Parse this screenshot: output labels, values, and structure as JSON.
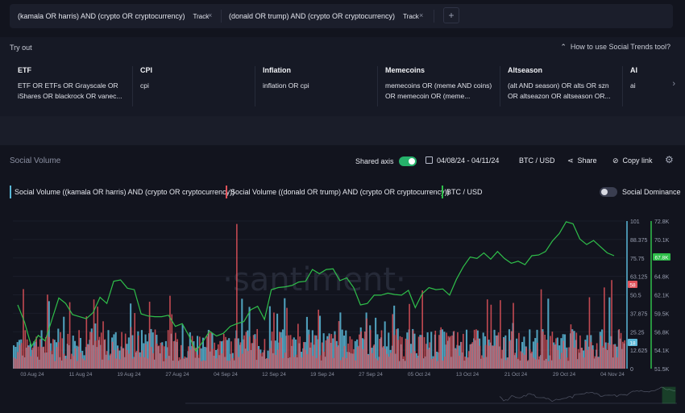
{
  "queries": [
    {
      "text": "(kamala OR harris) AND (crypto OR cryptocurrency)",
      "track": "Track",
      "close": "×"
    },
    {
      "text": "(donald OR trump) AND (crypto OR cryptocurrency)",
      "track": "Track",
      "close": "×"
    }
  ],
  "add_label": "+",
  "tryout": {
    "label": "Try out",
    "how_to": "How to use Social Trends tool?",
    "topics": [
      {
        "title": "ETF",
        "query": "ETF OR ETFs OR Grayscale OR iShares OR blackrock OR vanec..."
      },
      {
        "title": "CPI",
        "query": "cpi"
      },
      {
        "title": "Inflation",
        "query": "inflation OR cpi"
      },
      {
        "title": "Memecoins",
        "query": "memecoins OR (meme AND coins) OR memecoin OR (meme..."
      },
      {
        "title": "Altseason",
        "query": "(alt AND season) OR alts OR szn OR altseazon OR altseason OR..."
      },
      {
        "title": "AI",
        "query": "ai"
      }
    ]
  },
  "toolbar": {
    "title": "Social Volume",
    "shared_axis": "Shared axis",
    "date_range": "04/08/24 - 04/11/24",
    "pair": "BTC / USD",
    "share": "Share",
    "copy_link": "Copy link"
  },
  "legend": {
    "kamala": "Social Volume ((kamala OR harris) AND (crypto OR cryptocurrency))",
    "trump": "Social Volume ((donald OR trump) AND (crypto OR cryptocurrency))",
    "btc": "BTC / USD",
    "dominance": "Social Dominance"
  },
  "colors": {
    "kamala": "#5ab8d8",
    "trump": "#e0525a",
    "btc": "#2fbf4a"
  },
  "chart_data": {
    "type": "bar+line",
    "watermark": "·santiment·",
    "x_ticks": [
      "03 Aug 24",
      "11 Aug 24",
      "19 Aug 24",
      "27 Aug 24",
      "04 Sep 24",
      "12 Sep 24",
      "19 Sep 24",
      "27 Sep 24",
      "05 Oct 24",
      "13 Oct 24",
      "21 Oct 24",
      "29 Oct 24",
      "04 Nov 24"
    ],
    "left_axis_ticks": [
      "101",
      "88.375",
      "75.75",
      "63.125",
      "50.5",
      "37.875",
      "25.25",
      "12.625",
      "0"
    ],
    "right_axis_ticks": [
      "72.8K",
      "70.1K",
      "67.4K",
      "64.8K",
      "62.1K",
      "59.5K",
      "56.8K",
      "54.1K",
      "51.5K"
    ],
    "current_labels": {
      "trump": "58",
      "kamala": "18",
      "btc": "67.8K"
    },
    "social_volume_range": [
      0,
      101
    ],
    "btc_range": [
      51500,
      72800
    ],
    "btc_usd": [
      60700,
      58200,
      54700,
      56300,
      55500,
      58600,
      61700,
      60900,
      59300,
      59000,
      58700,
      59600,
      61800,
      60900,
      64100,
      64300,
      63100,
      62900,
      59400,
      59100,
      59000,
      59000,
      59200,
      57600,
      58000,
      56200,
      54000,
      55400,
      56900,
      56200,
      56600,
      57600,
      58000,
      58300,
      60000,
      60500,
      58600,
      62900,
      63200,
      63300,
      63500,
      64000,
      64100,
      65800,
      65200,
      65800,
      65900,
      64200,
      64600,
      63200,
      60700,
      60900,
      62100,
      62100,
      62400,
      62200,
      62100,
      62800,
      60300,
      62300,
      63200,
      62900,
      63000,
      62100,
      64400,
      66200,
      67600,
      67400,
      68200,
      67300,
      68400,
      67400,
      66700,
      67000,
      66500,
      67800,
      67900,
      68400,
      69900,
      71000,
      72700,
      72400,
      70200,
      69400,
      70000,
      69100,
      68200,
      67800
    ]
  }
}
